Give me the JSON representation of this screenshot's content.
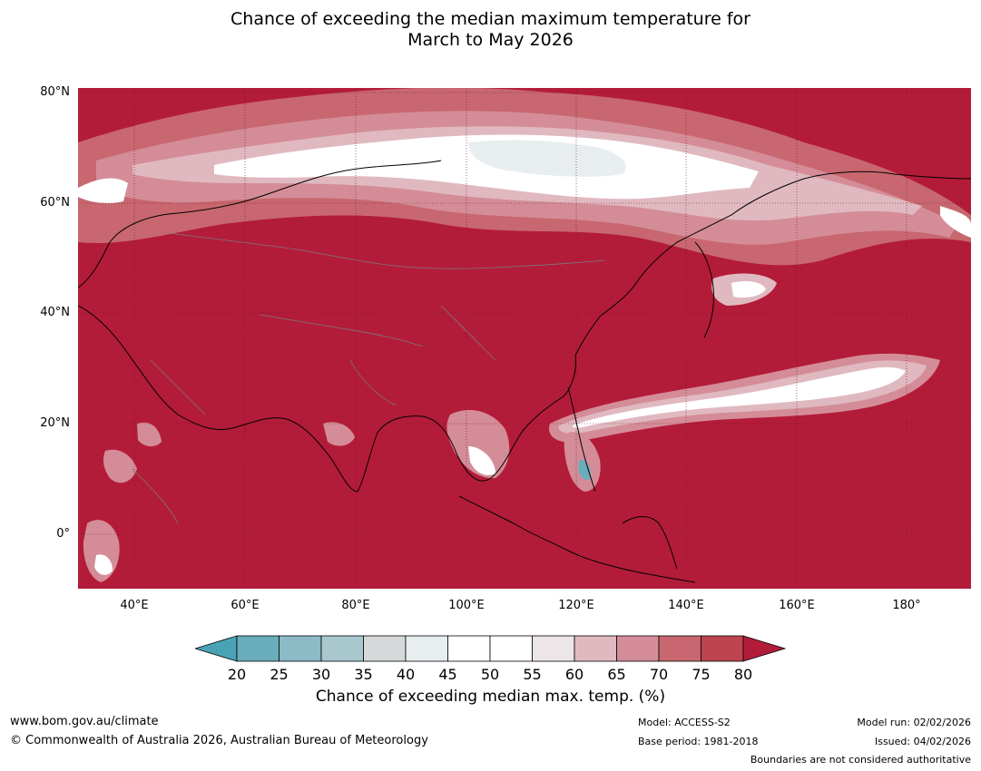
{
  "title_line1": "Chance of exceeding the median maximum temperature for",
  "title_line2": "March to May 2026",
  "lat_labels": [
    "80°N",
    "60°N",
    "40°N",
    "20°N",
    "0°"
  ],
  "lon_labels": [
    "40°E",
    "60°E",
    "80°E",
    "100°E",
    "120°E",
    "140°E",
    "160°E",
    "180°"
  ],
  "colorbar": {
    "ticks": [
      "20",
      "25",
      "30",
      "35",
      "40",
      "45",
      "50",
      "55",
      "60",
      "65",
      "70",
      "75",
      "80"
    ],
    "colors": [
      "#4aa3b5",
      "#6aadbb",
      "#8bbbc6",
      "#a8c8ce",
      "#d5d9da",
      "#e8eef0",
      "#ffffff",
      "#ffffff",
      "#ece6e8",
      "#e0b9c0",
      "#d48d98",
      "#c8676f",
      "#be4550",
      "#b31c39"
    ],
    "label": "Chance of exceeding median max. temp. (%)"
  },
  "footer": {
    "url": "www.bom.gov.au/climate",
    "copyright": "© Commonwealth of Australia 2026, Australian Bureau of Meteorology",
    "model": "Model: ACCESS-S2",
    "base_period": "Base period: 1981-2018",
    "model_run": "Model run: 02/02/2026",
    "issued": "Issued: 04/02/2026",
    "disclaimer": "Boundaries are not considered authoritative"
  }
}
